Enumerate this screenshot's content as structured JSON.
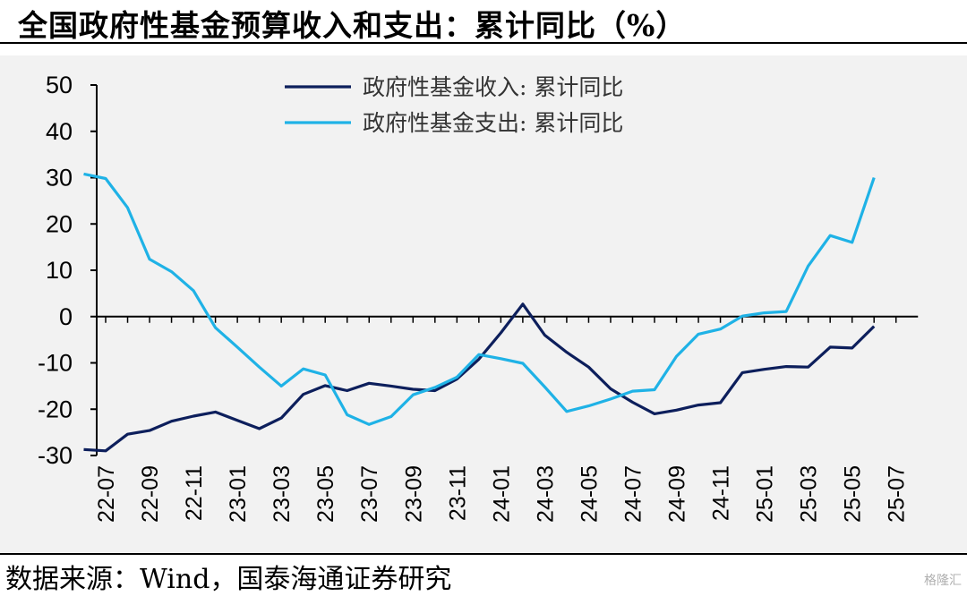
{
  "title": "全国政府性基金预算收入和支出：累计同比（%）",
  "source": "数据来源：Wind，国泰海通证券研究",
  "watermark": "格隆汇",
  "chart_data": {
    "type": "line",
    "ylim": [
      -30,
      50
    ],
    "yticks": [
      50,
      40,
      30,
      20,
      10,
      0,
      -10,
      -20,
      -30
    ],
    "legend_position": "top-center",
    "categories": [
      "22-07",
      "22-08",
      "22-09",
      "22-10",
      "22-11",
      "22-12",
      "23-01",
      "23-02",
      "23-03",
      "23-04",
      "23-05",
      "23-06",
      "23-07",
      "23-08",
      "23-09",
      "23-10",
      "23-11",
      "23-12",
      "24-01",
      "24-02",
      "24-03",
      "24-04",
      "24-05",
      "24-06",
      "24-07",
      "24-08",
      "24-09",
      "24-10",
      "24-11",
      "24-12",
      "25-01",
      "25-02",
      "25-03",
      "25-04",
      "25-05",
      "25-06",
      "25-07"
    ],
    "x_tick_labels": [
      "22-07",
      "22-09",
      "22-11",
      "23-01",
      "23-03",
      "23-05",
      "23-07",
      "23-09",
      "23-11",
      "24-01",
      "24-03",
      "24-05",
      "24-07",
      "24-09",
      "24-11",
      "25-01",
      "25-03",
      "25-05",
      "25-07"
    ],
    "series": [
      {
        "name": "政府性基金收入: 累计同比",
        "color": "#0d1f5c",
        "points": [
          [
            "22-06",
            -28.7
          ],
          [
            "22-07",
            -29.0
          ],
          [
            "22-08",
            -25.4
          ],
          [
            "22-09",
            -24.6
          ],
          [
            "22-10",
            -22.6
          ],
          [
            "22-11",
            -21.5
          ],
          [
            "22-12",
            -20.6
          ],
          [
            "23-01",
            -22.4
          ],
          [
            "23-02",
            -24.2
          ],
          [
            "23-03",
            -21.9
          ],
          [
            "23-04",
            -16.8
          ],
          [
            "23-05",
            -14.9
          ],
          [
            "23-06",
            -16.0
          ],
          [
            "23-07",
            -14.4
          ],
          [
            "23-08",
            -15.0
          ],
          [
            "23-09",
            -15.7
          ],
          [
            "23-10",
            -16.0
          ],
          [
            "23-11",
            -13.5
          ],
          [
            "23-12",
            -9.2
          ],
          [
            "24-01",
            -3.5
          ],
          [
            "24-02",
            2.7
          ],
          [
            "24-03",
            -4.0
          ],
          [
            "24-04",
            -7.7
          ],
          [
            "24-05",
            -10.9
          ],
          [
            "24-06",
            -15.6
          ],
          [
            "24-07",
            -18.5
          ],
          [
            "24-08",
            -21.0
          ],
          [
            "24-09",
            -20.2
          ],
          [
            "24-10",
            -19.1
          ],
          [
            "24-11",
            -18.6
          ],
          [
            "24-12",
            -12.1
          ],
          [
            "25-01",
            -11.4
          ],
          [
            "25-02",
            -10.8
          ],
          [
            "25-03",
            -10.9
          ],
          [
            "25-04",
            -6.6
          ],
          [
            "25-05",
            -6.8
          ],
          [
            "25-06",
            -2.1
          ]
        ]
      },
      {
        "name": "政府性基金支出: 累计同比",
        "color": "#1fb2e6",
        "points": [
          [
            "22-06",
            30.8
          ],
          [
            "22-07",
            29.8
          ],
          [
            "22-08",
            23.5
          ],
          [
            "22-09",
            12.4
          ],
          [
            "22-10",
            9.7
          ],
          [
            "22-11",
            5.6
          ],
          [
            "22-12",
            -2.4
          ],
          [
            "23-01",
            -6.6
          ],
          [
            "23-02",
            -10.9
          ],
          [
            "23-03",
            -15.0
          ],
          [
            "23-04",
            -11.3
          ],
          [
            "23-05",
            -12.6
          ],
          [
            "23-06",
            -21.2
          ],
          [
            "23-07",
            -23.3
          ],
          [
            "23-08",
            -21.6
          ],
          [
            "23-09",
            -16.9
          ],
          [
            "23-10",
            -15.3
          ],
          [
            "23-11",
            -13.1
          ],
          [
            "23-12",
            -8.2
          ],
          [
            "24-01",
            -9.1
          ],
          [
            "24-02",
            -10.1
          ],
          [
            "24-03",
            -15.2
          ],
          [
            "24-04",
            -20.5
          ],
          [
            "24-05",
            -19.3
          ],
          [
            "24-06",
            -17.8
          ],
          [
            "24-07",
            -16.1
          ],
          [
            "24-08",
            -15.8
          ],
          [
            "24-09",
            -8.6
          ],
          [
            "24-10",
            -3.8
          ],
          [
            "24-11",
            -2.7
          ],
          [
            "24-12",
            0.1
          ],
          [
            "25-01",
            0.8
          ],
          [
            "25-02",
            1.1
          ],
          [
            "25-03",
            10.9
          ],
          [
            "25-04",
            17.5
          ],
          [
            "25-05",
            16.0
          ],
          [
            "25-06",
            30.0
          ]
        ]
      }
    ]
  }
}
